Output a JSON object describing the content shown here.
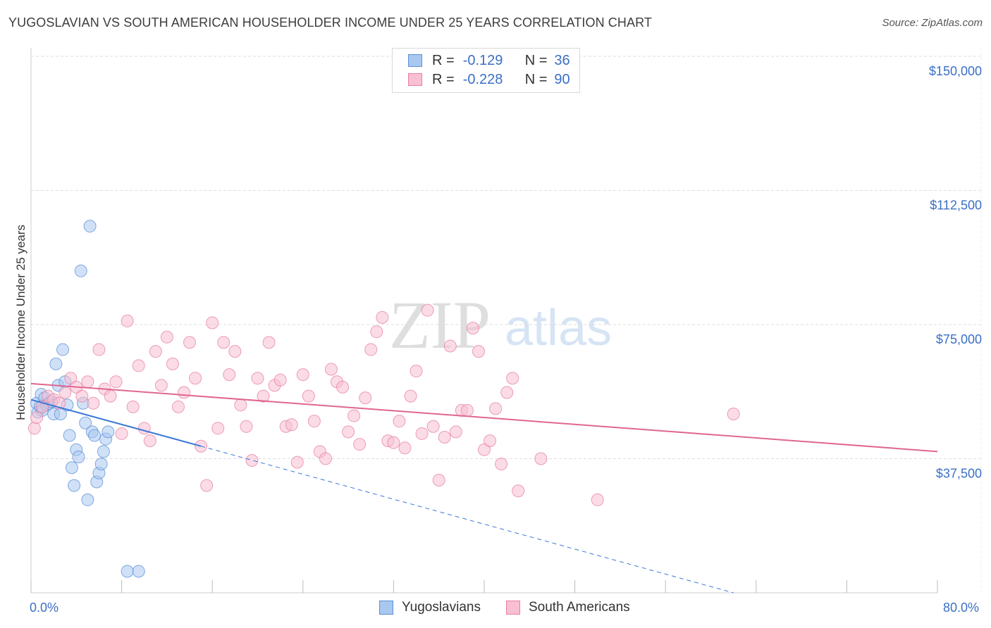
{
  "title": "YUGOSLAVIAN VS SOUTH AMERICAN HOUSEHOLDER INCOME UNDER 25 YEARS CORRELATION CHART",
  "source": "Source: ZipAtlas.com",
  "watermark": {
    "zip": "ZIP",
    "atlas": "atlas"
  },
  "legend_top": {
    "rows": [
      {
        "r_label": "R =",
        "r_value": "-0.129",
        "n_label": "N =",
        "n_value": "36",
        "color": "#a9c8f0",
        "border": "#5b8fd6"
      },
      {
        "r_label": "R =",
        "r_value": "-0.228",
        "n_label": "N =",
        "n_value": "90",
        "color": "#f8c0d2",
        "border": "#e77fa2"
      }
    ]
  },
  "legend_bottom": [
    {
      "label": "Yugoslavians",
      "color": "#a9c8f0",
      "border": "#5b8fd6"
    },
    {
      "label": "South Americans",
      "color": "#f8c0d2",
      "border": "#e77fa2"
    }
  ],
  "chart_data": {
    "type": "scatter",
    "xlabel": "",
    "ylabel": "Householder Income Under 25 years",
    "xlim": [
      0,
      80
    ],
    "ylim": [
      0,
      150000
    ],
    "x_tick_labels": [
      "0.0%",
      "80.0%"
    ],
    "y_ticks": [
      {
        "value": 37500,
        "label": "$37,500"
      },
      {
        "value": 75000,
        "label": "$75,000"
      },
      {
        "value": 112500,
        "label": "$112,500"
      },
      {
        "value": 150000,
        "label": "$150,000"
      }
    ],
    "grid": true,
    "series": [
      {
        "name": "Yugoslavians",
        "color": "#5b8fd6",
        "fill": "#a9c8f0",
        "trend": {
          "x0": 0,
          "y0": 54000,
          "x1": 15,
          "y1": 41000,
          "dash_to_x": 62,
          "dash_to_y": 0
        },
        "points": [
          [
            0.5,
            53000
          ],
          [
            0.6,
            50500
          ],
          [
            0.8,
            52000
          ],
          [
            0.9,
            55500
          ],
          [
            1.0,
            51000
          ],
          [
            1.2,
            54500
          ],
          [
            1.4,
            52500
          ],
          [
            1.6,
            53000
          ],
          [
            1.8,
            53500
          ],
          [
            2.0,
            50000
          ],
          [
            2.2,
            64000
          ],
          [
            2.4,
            58000
          ],
          [
            2.6,
            50000
          ],
          [
            2.8,
            68000
          ],
          [
            3.0,
            59000
          ],
          [
            3.2,
            52500
          ],
          [
            3.4,
            44000
          ],
          [
            3.6,
            35000
          ],
          [
            3.8,
            30000
          ],
          [
            4.0,
            40000
          ],
          [
            4.2,
            38000
          ],
          [
            4.4,
            90000
          ],
          [
            4.6,
            53000
          ],
          [
            4.8,
            47500
          ],
          [
            5.0,
            26000
          ],
          [
            5.2,
            102500
          ],
          [
            5.4,
            45000
          ],
          [
            5.6,
            44000
          ],
          [
            5.8,
            31000
          ],
          [
            6.0,
            33500
          ],
          [
            6.2,
            36000
          ],
          [
            6.4,
            39500
          ],
          [
            6.6,
            43000
          ],
          [
            6.8,
            45000
          ],
          [
            8.5,
            6000
          ],
          [
            9.5,
            6000
          ]
        ]
      },
      {
        "name": "South Americans",
        "color": "#e77fa2",
        "fill": "#f8c0d2",
        "trend": {
          "x0": 0,
          "y0": 58500,
          "x1": 80,
          "y1": 39500
        },
        "points": [
          [
            0.3,
            46000
          ],
          [
            0.5,
            49000
          ],
          [
            1.0,
            52000
          ],
          [
            1.5,
            55000
          ],
          [
            2.0,
            54000
          ],
          [
            2.5,
            53000
          ],
          [
            3.0,
            56000
          ],
          [
            3.5,
            60000
          ],
          [
            4.0,
            57500
          ],
          [
            4.5,
            55000
          ],
          [
            5.0,
            59000
          ],
          [
            5.5,
            53000
          ],
          [
            6.0,
            68000
          ],
          [
            6.5,
            57000
          ],
          [
            7.0,
            55000
          ],
          [
            7.5,
            59000
          ],
          [
            8.0,
            44500
          ],
          [
            8.5,
            76000
          ],
          [
            9.0,
            52000
          ],
          [
            9.5,
            63500
          ],
          [
            10.0,
            46000
          ],
          [
            10.5,
            42500
          ],
          [
            11.0,
            67500
          ],
          [
            11.5,
            58000
          ],
          [
            12.0,
            71500
          ],
          [
            12.5,
            64000
          ],
          [
            13.0,
            52000
          ],
          [
            13.5,
            56000
          ],
          [
            14.0,
            70000
          ],
          [
            14.5,
            60000
          ],
          [
            15.0,
            41000
          ],
          [
            15.5,
            30000
          ],
          [
            16.0,
            75500
          ],
          [
            16.5,
            46000
          ],
          [
            17.0,
            70000
          ],
          [
            17.5,
            61000
          ],
          [
            18.0,
            67500
          ],
          [
            18.5,
            52500
          ],
          [
            19.0,
            46500
          ],
          [
            19.5,
            37000
          ],
          [
            20.0,
            60000
          ],
          [
            20.5,
            55000
          ],
          [
            21.0,
            70000
          ],
          [
            21.5,
            58000
          ],
          [
            22.0,
            59500
          ],
          [
            22.5,
            46500
          ],
          [
            23.0,
            47000
          ],
          [
            23.5,
            36500
          ],
          [
            24.0,
            61000
          ],
          [
            24.5,
            55000
          ],
          [
            25.0,
            48000
          ],
          [
            25.5,
            39500
          ],
          [
            26.0,
            37500
          ],
          [
            26.5,
            62500
          ],
          [
            27.0,
            59000
          ],
          [
            27.5,
            57500
          ],
          [
            28.0,
            45000
          ],
          [
            28.5,
            49500
          ],
          [
            29.0,
            41500
          ],
          [
            29.5,
            54500
          ],
          [
            30.0,
            68000
          ],
          [
            30.5,
            73000
          ],
          [
            31.0,
            77000
          ],
          [
            31.5,
            42500
          ],
          [
            32.0,
            42000
          ],
          [
            32.5,
            48000
          ],
          [
            33.0,
            40500
          ],
          [
            33.5,
            55000
          ],
          [
            34.0,
            62000
          ],
          [
            34.5,
            44500
          ],
          [
            35.0,
            79000
          ],
          [
            35.5,
            46500
          ],
          [
            36.0,
            31500
          ],
          [
            36.5,
            43500
          ],
          [
            37.0,
            69000
          ],
          [
            37.5,
            45000
          ],
          [
            38.0,
            51000
          ],
          [
            38.5,
            51000
          ],
          [
            39.0,
            74000
          ],
          [
            39.5,
            67500
          ],
          [
            40.0,
            40000
          ],
          [
            40.5,
            42500
          ],
          [
            41.0,
            51500
          ],
          [
            41.5,
            36000
          ],
          [
            42.0,
            56000
          ],
          [
            42.5,
            60000
          ],
          [
            43.0,
            28500
          ],
          [
            45.0,
            37500
          ],
          [
            50.0,
            26000
          ],
          [
            62.0,
            50000
          ]
        ]
      }
    ]
  }
}
